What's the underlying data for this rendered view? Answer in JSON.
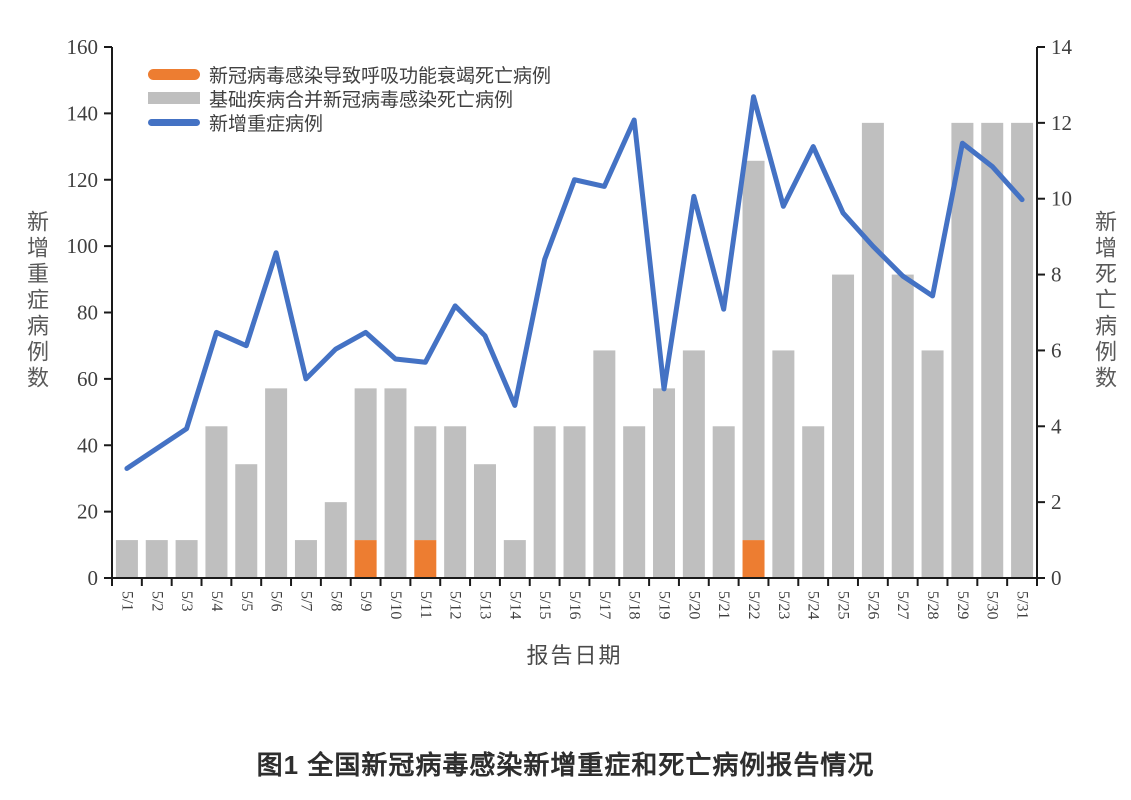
{
  "chart_data": {
    "type": "bar+line",
    "caption": "图1 全国新冠病毒感染新增重症和死亡病例报告情况",
    "xlabel": "报告日期",
    "grid": false,
    "legend_position": "top-left-inside",
    "x": [
      "5/1",
      "5/2",
      "5/3",
      "5/4",
      "5/5",
      "5/6",
      "5/7",
      "5/8",
      "5/9",
      "5/10",
      "5/11",
      "5/12",
      "5/13",
      "5/14",
      "5/15",
      "5/16",
      "5/17",
      "5/18",
      "5/19",
      "5/20",
      "5/21",
      "5/22",
      "5/23",
      "5/24",
      "5/25",
      "5/26",
      "5/27",
      "5/28",
      "5/29",
      "5/30",
      "5/31"
    ],
    "left_axis": {
      "title": "新增重症病例数",
      "min": 0,
      "max": 160,
      "step": 20
    },
    "right_axis": {
      "title": "新增死亡病例数",
      "min": 0,
      "max": 14,
      "step": 2
    },
    "series": [
      {
        "name": "新冠病毒感染导致呼吸功能衰竭死亡病例",
        "type": "bar",
        "stack": "deaths",
        "axis": "right",
        "color": "#ED7D31",
        "values": [
          0,
          0,
          0,
          0,
          0,
          0,
          0,
          0,
          1,
          0,
          1,
          0,
          0,
          0,
          0,
          0,
          0,
          0,
          0,
          0,
          0,
          1,
          0,
          0,
          0,
          0,
          0,
          0,
          0,
          0,
          0
        ]
      },
      {
        "name": "基础疾病合并新冠病毒感染死亡病例",
        "type": "bar",
        "stack": "deaths",
        "axis": "right",
        "color": "#BFBFBF",
        "values": [
          1,
          1,
          1,
          4,
          3,
          5,
          1,
          2,
          4,
          5,
          3,
          4,
          3,
          1,
          4,
          4,
          6,
          4,
          5,
          6,
          4,
          10,
          6,
          4,
          8,
          12,
          8,
          6,
          12,
          12,
          12
        ]
      },
      {
        "name": "新增重症病例",
        "type": "line",
        "axis": "left",
        "color": "#4472C4",
        "values": [
          33,
          39,
          45,
          74,
          70,
          98,
          60,
          69,
          74,
          66,
          65,
          82,
          73,
          52,
          96,
          120,
          118,
          138,
          57,
          115,
          81,
          145,
          112,
          130,
          110,
          100,
          91,
          85,
          131,
          124,
          114
        ]
      }
    ],
    "axis_color": "#1a1a1a"
  }
}
